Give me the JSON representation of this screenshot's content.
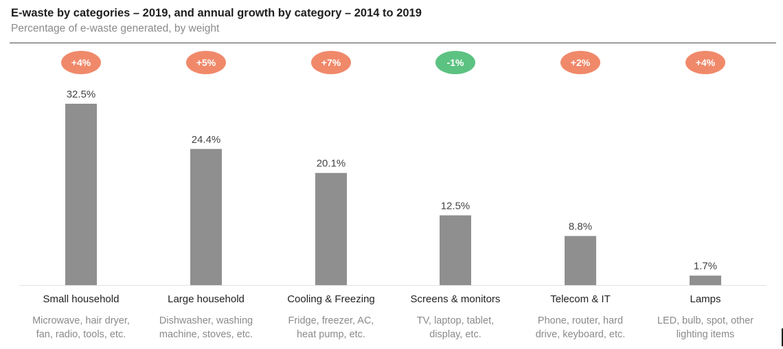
{
  "title": "E-waste by categories – 2019, and annual growth by category – 2014 to 2019",
  "subtitle": "Percentage of e-waste generated, by weight",
  "colors": {
    "bar": "#8f8f8f",
    "positive_badge": "#f0896a",
    "negative_badge": "#5cc281",
    "baseline": "#e2e2e2"
  },
  "chart_data": {
    "type": "bar",
    "categories": [
      "Small household",
      "Large household",
      "Cooling & Freezing",
      "Screens & monitors",
      "Telecom & IT",
      "Lamps"
    ],
    "values": [
      32.5,
      24.4,
      20.1,
      12.5,
      8.8,
      1.7
    ],
    "value_labels": [
      "32.5%",
      "24.4%",
      "20.1%",
      "12.5%",
      "8.8%",
      "1.7%"
    ],
    "growth_labels": [
      "+4%",
      "+5%",
      "+7%",
      "-1%",
      "+2%",
      "+4%"
    ],
    "growth_values": [
      4,
      5,
      7,
      -1,
      2,
      4
    ],
    "descriptions": [
      [
        "Microwave, hair dryer,",
        "fan, radio, tools, etc."
      ],
      [
        "Dishwasher, washing",
        "machine, stoves, etc."
      ],
      [
        "Fridge, freezer, AC,",
        "heat pump, etc."
      ],
      [
        "TV, laptop, tablet,",
        "display, etc."
      ],
      [
        "Phone, router, hard",
        "drive, keyboard, etc."
      ],
      [
        "LED, bulb, spot, other",
        "lighting items"
      ]
    ],
    "ylim": [
      0,
      32.5
    ],
    "grid": false
  }
}
